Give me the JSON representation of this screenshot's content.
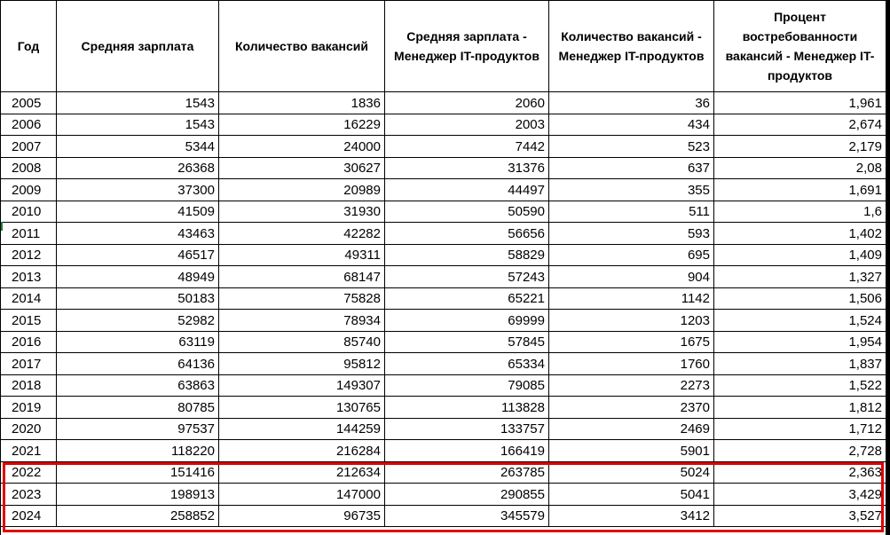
{
  "table": {
    "headers": {
      "year": "Год",
      "avg_salary": "Средняя зарплата",
      "vacancies": "Количество вакансий",
      "pm_salary": "Средняя зарплата - Менеджер IT-продуктов",
      "pm_vacancies": "Количество вакансий - Менеджер IT-продуктов",
      "pm_demand": "Процент востребованности вакансий - Менеджер IT-продуктов"
    },
    "rows": [
      [
        "2005",
        "1543",
        "1836",
        "2060",
        "36",
        "1,961"
      ],
      [
        "2006",
        "1543",
        "16229",
        "2003",
        "434",
        "2,674"
      ],
      [
        "2007",
        "5344",
        "24000",
        "7442",
        "523",
        "2,179"
      ],
      [
        "2008",
        "26368",
        "30627",
        "31376",
        "637",
        "2,08"
      ],
      [
        "2009",
        "37300",
        "20989",
        "44497",
        "355",
        "1,691"
      ],
      [
        "2010",
        "41509",
        "31930",
        "50590",
        "511",
        "1,6"
      ],
      [
        "2011",
        "43463",
        "42282",
        "56656",
        "593",
        "1,402"
      ],
      [
        "2012",
        "46517",
        "49311",
        "58829",
        "695",
        "1,409"
      ],
      [
        "2013",
        "48949",
        "68147",
        "57243",
        "904",
        "1,327"
      ],
      [
        "2014",
        "50183",
        "75828",
        "65221",
        "1142",
        "1,506"
      ],
      [
        "2015",
        "52982",
        "78934",
        "69999",
        "1203",
        "1,524"
      ],
      [
        "2016",
        "63119",
        "85740",
        "57845",
        "1675",
        "1,954"
      ],
      [
        "2017",
        "64136",
        "95812",
        "65334",
        "1760",
        "1,837"
      ],
      [
        "2018",
        "63863",
        "149307",
        "79085",
        "2273",
        "1,522"
      ],
      [
        "2019",
        "80785",
        "130765",
        "113828",
        "2370",
        "1,812"
      ],
      [
        "2020",
        "97537",
        "144259",
        "133757",
        "2469",
        "1,712"
      ],
      [
        "2021",
        "118220",
        "216284",
        "166419",
        "5901",
        "2,728"
      ],
      [
        "2022",
        "151416",
        "212634",
        "263785",
        "5024",
        "2,363"
      ],
      [
        "2023",
        "198913",
        "147000",
        "290855",
        "5041",
        "3,429"
      ],
      [
        "2024",
        "258852",
        "96735",
        "345579",
        "3412",
        "3,527"
      ]
    ]
  },
  "highlight": {
    "color": "#e00000",
    "rows": [
      "2022",
      "2023",
      "2024"
    ]
  }
}
